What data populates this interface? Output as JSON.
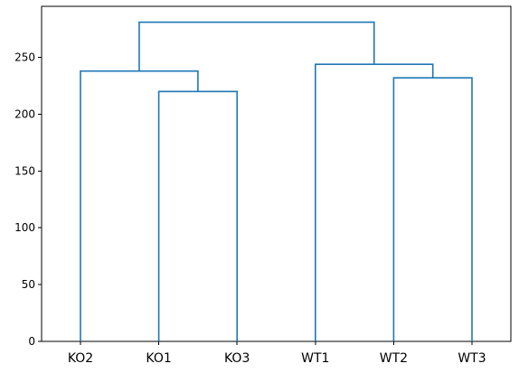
{
  "chart_data": {
    "type": "dendrogram",
    "leaves": [
      "KO2",
      "KO1",
      "KO3",
      "WT1",
      "WT2",
      "WT3"
    ],
    "merges": [
      {
        "left": "KO1",
        "right": "KO3",
        "height": 220
      },
      {
        "left": "WT2",
        "right": "WT3",
        "height": 232
      },
      {
        "left": "KO2",
        "right": "KO1+KO3",
        "height": 238
      },
      {
        "left": "WT1",
        "right": "WT2+WT3",
        "height": 244
      },
      {
        "left": "KO2+KO1+KO3",
        "right": "WT1+WT2+WT3",
        "height": 281
      }
    ],
    "yticks": [
      0,
      50,
      100,
      150,
      200,
      250
    ],
    "ylim": [
      0,
      295
    ],
    "grid": false,
    "line_color": "#1f77b4",
    "title": "",
    "xlabel": "",
    "ylabel": ""
  }
}
